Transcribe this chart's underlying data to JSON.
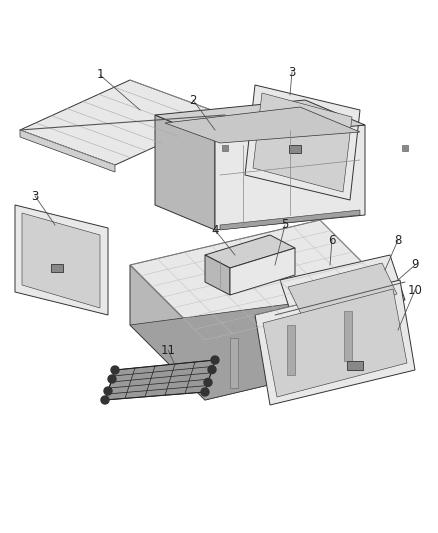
{
  "background_color": "#ffffff",
  "figure_size": [
    4.38,
    5.33
  ],
  "dpi": 100,
  "edge_color": "#333333",
  "edge_lw": 0.7,
  "fill_light": "#e8e8e8",
  "fill_mid": "#d0d0d0",
  "fill_dark": "#b8b8b8",
  "fill_darkest": "#a0a0a0",
  "label_color": "#222222",
  "label_fontsize": 8.5,
  "line_color": "#555555",
  "net_fill": "#888888",
  "net_edge": "#222222"
}
